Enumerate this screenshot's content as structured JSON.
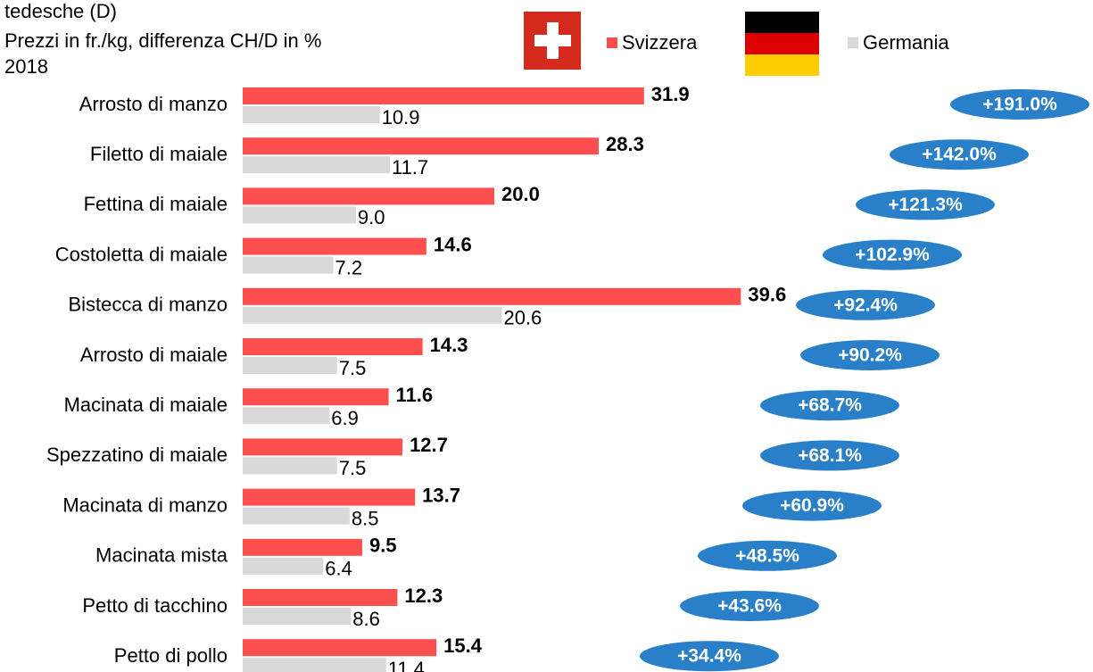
{
  "chart_data": {
    "type": "bar",
    "orientation": "horizontal",
    "title": "tedesche (D)",
    "subtitle": "Prezzi in fr./kg, differenza CH/D in %",
    "year": "2018",
    "categories": [
      "Arrosto di manzo",
      "Filetto di maiale",
      "Fettina di maiale",
      "Costoletta di maiale",
      "Bistecca di manzo",
      "Arrosto di maiale",
      "Macinata di maiale",
      "Spezzatino di maiale",
      "Macinata di manzo",
      "Macinata mista",
      "Petto di tacchino",
      "Petto di pollo"
    ],
    "series": [
      {
        "name": "Svizzera",
        "color": "#fe4f4f",
        "values": [
          31.9,
          28.3,
          20.0,
          14.6,
          39.6,
          14.3,
          11.6,
          12.7,
          13.7,
          9.5,
          12.3,
          15.4
        ],
        "value_labels": [
          "31.9",
          "28.3",
          "20.0",
          "14.6",
          "39.6",
          "14.3",
          "11.6",
          "12.7",
          "13.7",
          "9.5",
          "12.3",
          "15.4"
        ]
      },
      {
        "name": "Germania",
        "color": "#d9d9d9",
        "values": [
          10.9,
          11.7,
          9.0,
          7.2,
          20.6,
          7.5,
          6.9,
          7.5,
          8.5,
          6.4,
          8.6,
          11.4
        ],
        "value_labels": [
          "10.9",
          "11.7",
          "9.0",
          "7.2",
          "20.6",
          "7.5",
          "6.9",
          "7.5",
          "8.5",
          "6.4",
          "8.6",
          "11.4"
        ]
      }
    ],
    "differences": {
      "color": "#2a7fc9",
      "values": [
        191.0,
        142.0,
        121.3,
        102.9,
        92.4,
        90.2,
        68.7,
        68.1,
        60.9,
        48.5,
        43.6,
        34.4
      ],
      "value_labels": [
        "+191.0%",
        "+142.0%",
        "+121.3%",
        "+102.9%",
        "+92.4%",
        "+90.2%",
        "+68.7%",
        "+68.1%",
        "+60.9%",
        "+48.5%",
        "+43.6%",
        "+34.4%"
      ]
    }
  }
}
